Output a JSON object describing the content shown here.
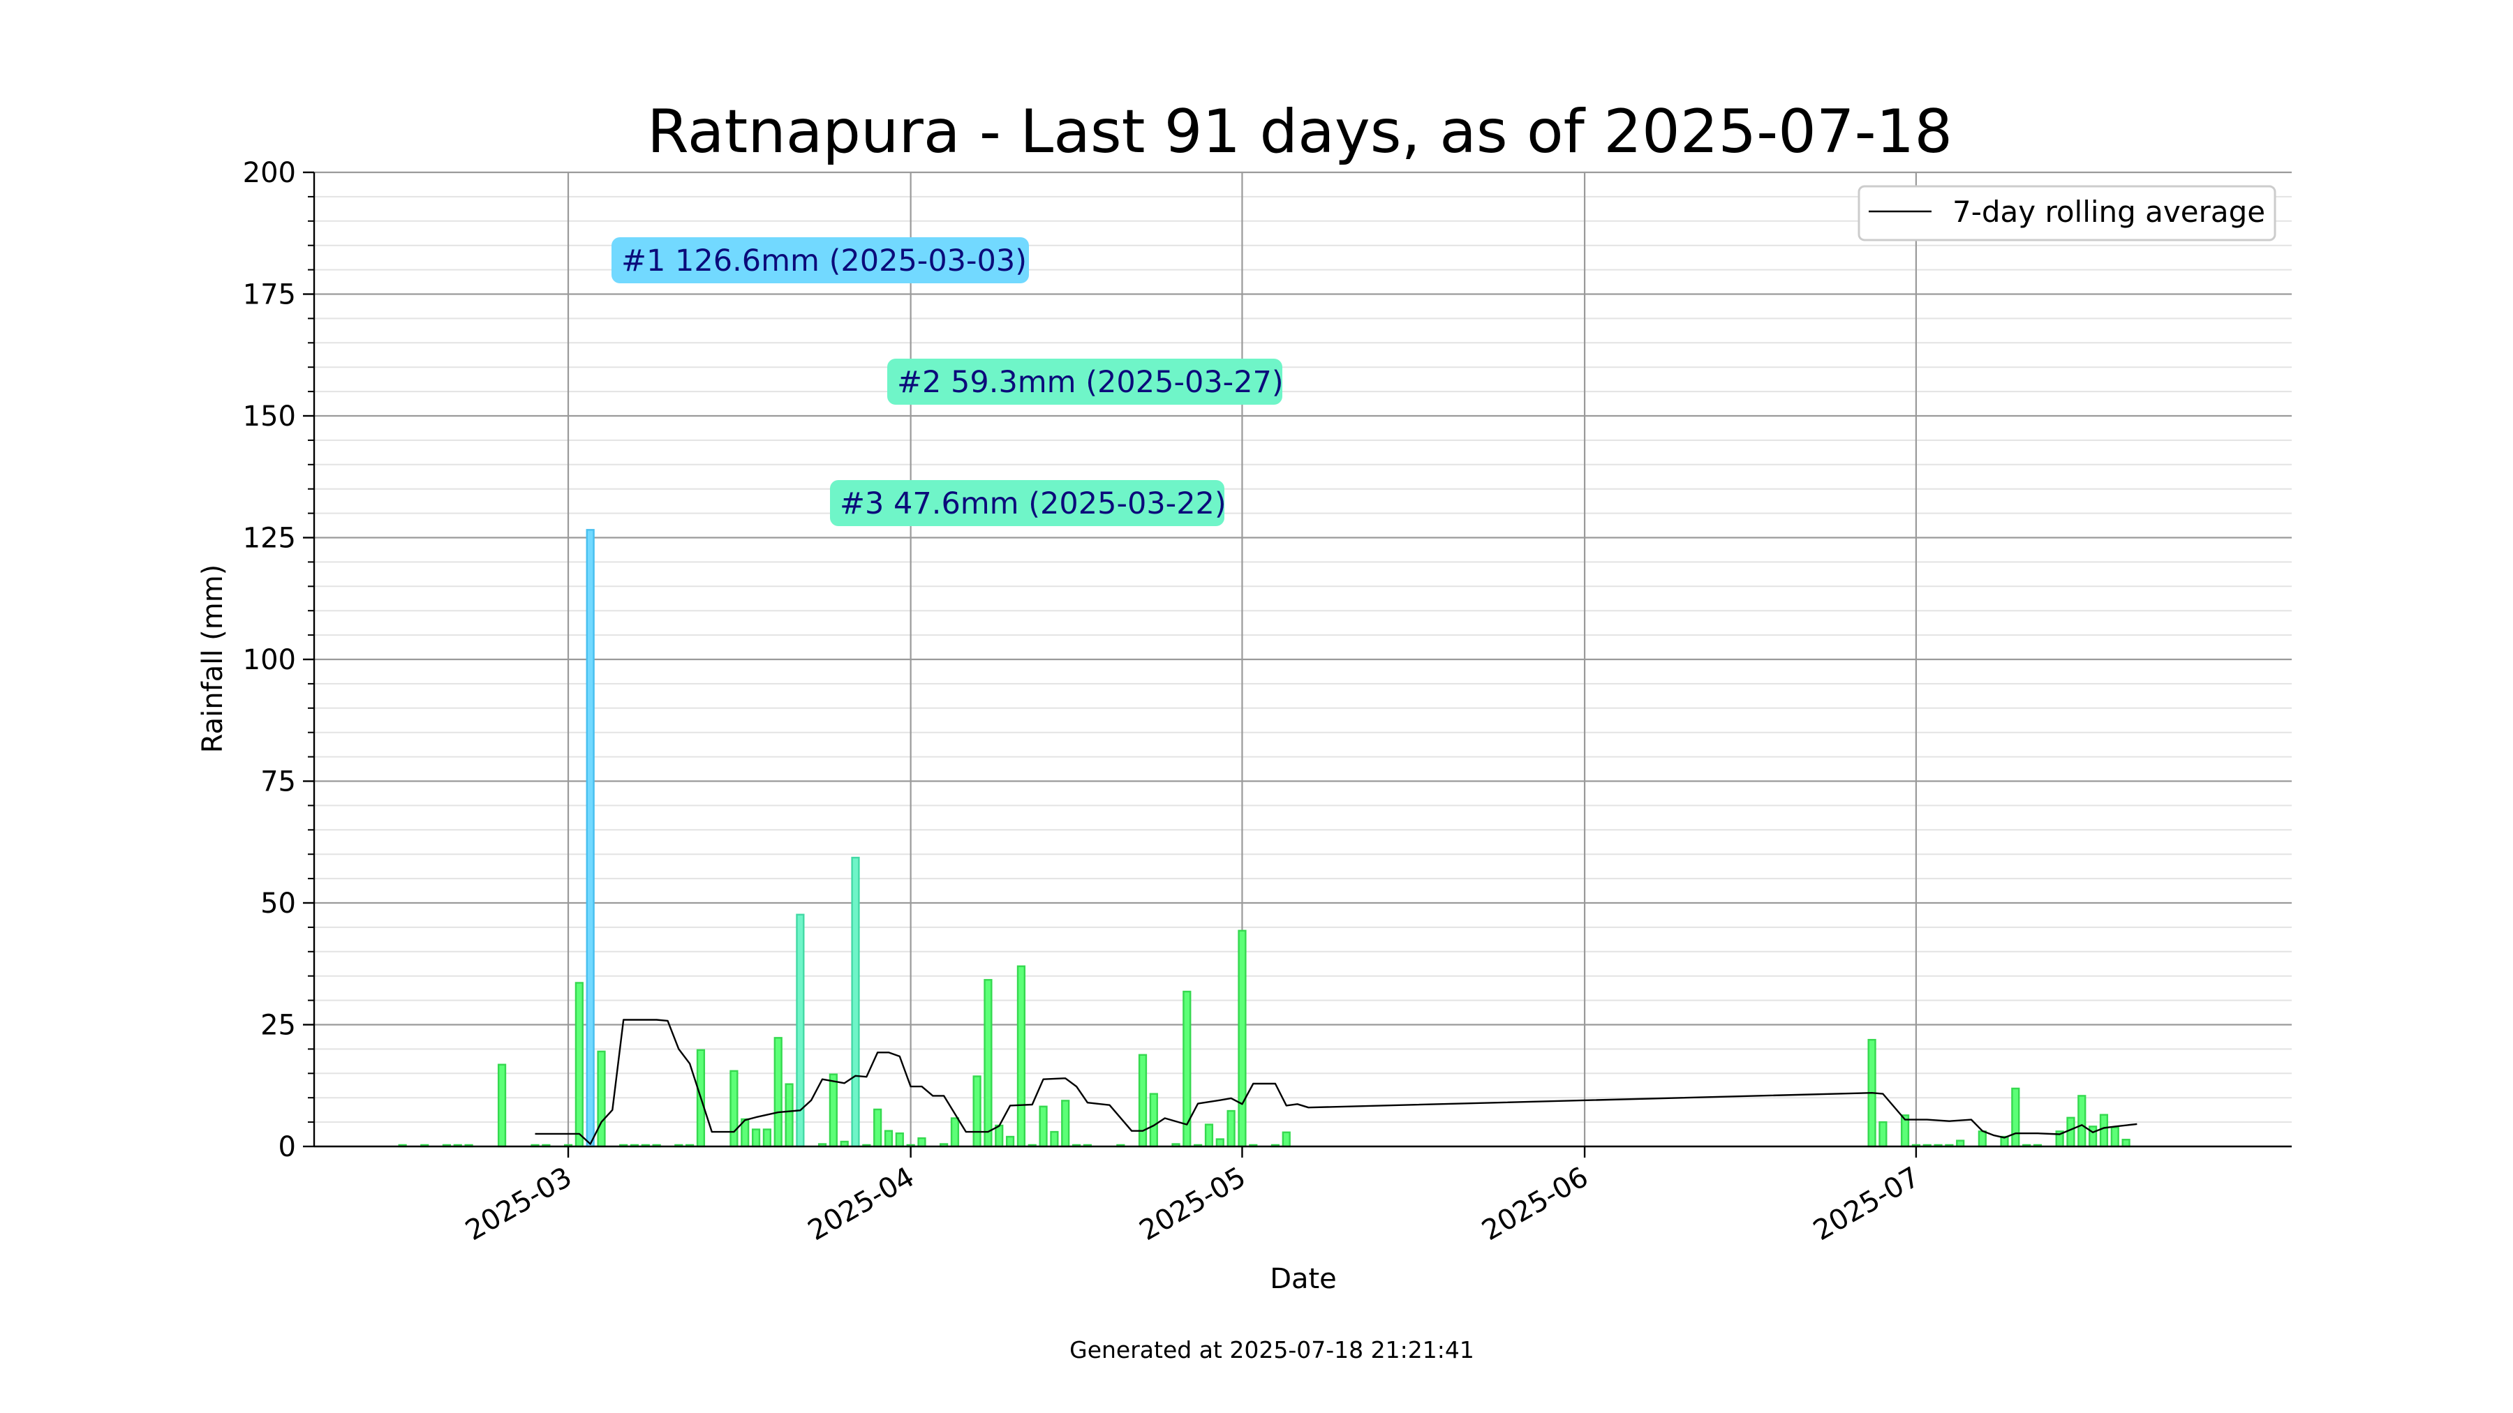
{
  "colors": {
    "bar_default": "#5cff77",
    "bar_default_edge": "#35d94f",
    "bar_top1": "#72d9ff",
    "bar_top1_edge": "#47bfef",
    "bar_top_other": "#6ff5c8",
    "bar_top_other_edge": "#42d9a5",
    "rolling_line": "#000000",
    "grid_major": "#9a9a9a",
    "grid_minor": "#e3e3e3"
  },
  "chart_data": {
    "type": "bar",
    "title": "Ratnapura - Last 91 days, as of 2025-07-18",
    "xlabel": "Date",
    "ylabel": "Rainfall (mm)",
    "ylim": [
      0,
      200
    ],
    "yticks": [
      0,
      25,
      50,
      75,
      100,
      125,
      150,
      175,
      200
    ],
    "xlim": [
      "2025-02-06",
      "2025-08-04"
    ],
    "xticks": [
      "2025-03",
      "2025-04",
      "2025-05",
      "2025-06",
      "2025-07"
    ],
    "grid": true,
    "legend": {
      "placement": "top-right",
      "entries": [
        "7-day rolling average"
      ]
    },
    "series": [
      {
        "kind": "bar",
        "points": [
          [
            "2025-02-14",
            0.3
          ],
          [
            "2025-02-16",
            0.3
          ],
          [
            "2025-02-18",
            0.3
          ],
          [
            "2025-02-19",
            0.3
          ],
          [
            "2025-02-20",
            0.3
          ],
          [
            "2025-02-23",
            16.8
          ],
          [
            "2025-02-26",
            0.3
          ],
          [
            "2025-02-27",
            0.3
          ],
          [
            "2025-03-01",
            0.3
          ],
          [
            "2025-03-02",
            33.6
          ],
          [
            "2025-03-03",
            126.6
          ],
          [
            "2025-03-04",
            19.5
          ],
          [
            "2025-03-06",
            0.3
          ],
          [
            "2025-03-07",
            0.3
          ],
          [
            "2025-03-08",
            0.3
          ],
          [
            "2025-03-09",
            0.3
          ],
          [
            "2025-03-11",
            0.3
          ],
          [
            "2025-03-12",
            0.3
          ],
          [
            "2025-03-13",
            19.8
          ],
          [
            "2025-03-16",
            15.5
          ],
          [
            "2025-03-17",
            5.6
          ],
          [
            "2025-03-18",
            3.5
          ],
          [
            "2025-03-19",
            3.5
          ],
          [
            "2025-03-20",
            22.3
          ],
          [
            "2025-03-21",
            12.8
          ],
          [
            "2025-03-22",
            47.6
          ],
          [
            "2025-03-24",
            0.5
          ],
          [
            "2025-03-25",
            14.8
          ],
          [
            "2025-03-26",
            1.0
          ],
          [
            "2025-03-27",
            59.3
          ],
          [
            "2025-03-28",
            0.3
          ],
          [
            "2025-03-29",
            7.6
          ],
          [
            "2025-03-30",
            3.2
          ],
          [
            "2025-03-31",
            2.7
          ],
          [
            "2025-04-01",
            0.3
          ],
          [
            "2025-04-02",
            1.7
          ],
          [
            "2025-04-04",
            0.5
          ],
          [
            "2025-04-05",
            5.8
          ],
          [
            "2025-04-07",
            14.4
          ],
          [
            "2025-04-08",
            34.2
          ],
          [
            "2025-04-09",
            4.3
          ],
          [
            "2025-04-10",
            2.0
          ],
          [
            "2025-04-11",
            37.0
          ],
          [
            "2025-04-12",
            0.3
          ],
          [
            "2025-04-13",
            8.2
          ],
          [
            "2025-04-14",
            3.0
          ],
          [
            "2025-04-15",
            9.4
          ],
          [
            "2025-04-16",
            0.3
          ],
          [
            "2025-04-17",
            0.3
          ],
          [
            "2025-04-20",
            0.3
          ],
          [
            "2025-04-22",
            18.8
          ],
          [
            "2025-04-23",
            10.8
          ],
          [
            "2025-04-25",
            0.5
          ],
          [
            "2025-04-26",
            31.8
          ],
          [
            "2025-04-27",
            0.3
          ],
          [
            "2025-04-28",
            4.5
          ],
          [
            "2025-04-29",
            1.5
          ],
          [
            "2025-04-30",
            7.3
          ],
          [
            "2025-05-01",
            44.3
          ],
          [
            "2025-05-02",
            0.3
          ],
          [
            "2025-05-04",
            0.3
          ],
          [
            "2025-05-05",
            2.9
          ],
          [
            "2025-06-27",
            21.9
          ],
          [
            "2025-06-28",
            5.0
          ],
          [
            "2025-06-30",
            6.4
          ],
          [
            "2025-07-01",
            0.3
          ],
          [
            "2025-07-02",
            0.3
          ],
          [
            "2025-07-03",
            0.3
          ],
          [
            "2025-07-04",
            0.3
          ],
          [
            "2025-07-05",
            1.2
          ],
          [
            "2025-07-07",
            3.1
          ],
          [
            "2025-07-09",
            2.0
          ],
          [
            "2025-07-10",
            11.9
          ],
          [
            "2025-07-11",
            0.3
          ],
          [
            "2025-07-12",
            0.3
          ],
          [
            "2025-07-14",
            3.1
          ],
          [
            "2025-07-15",
            5.9
          ],
          [
            "2025-07-16",
            10.4
          ],
          [
            "2025-07-17",
            4.1
          ],
          [
            "2025-07-18",
            6.5
          ],
          [
            "2025-07-19",
            3.9
          ],
          [
            "2025-07-20",
            1.4
          ]
        ]
      },
      {
        "kind": "line",
        "name": "7-day rolling average",
        "points": [
          [
            "2025-02-26",
            2.6
          ],
          [
            "2025-03-01",
            2.6
          ],
          [
            "2025-03-02",
            2.6
          ],
          [
            "2025-03-03",
            0.5
          ],
          [
            "2025-03-04",
            5.0
          ],
          [
            "2025-03-05",
            7.5
          ],
          [
            "2025-03-06",
            26.0
          ],
          [
            "2025-03-09",
            26.0
          ],
          [
            "2025-03-10",
            25.8
          ],
          [
            "2025-03-11",
            20.0
          ],
          [
            "2025-03-12",
            17.0
          ],
          [
            "2025-03-14",
            3.0
          ],
          [
            "2025-03-16",
            3.0
          ],
          [
            "2025-03-17",
            5.4
          ],
          [
            "2025-03-18",
            6.0
          ],
          [
            "2025-03-20",
            7.0
          ],
          [
            "2025-03-22",
            7.4
          ],
          [
            "2025-03-23",
            9.5
          ],
          [
            "2025-03-24",
            13.8
          ],
          [
            "2025-03-26",
            13.0
          ],
          [
            "2025-03-27",
            14.5
          ],
          [
            "2025-03-28",
            14.3
          ],
          [
            "2025-03-29",
            19.3
          ],
          [
            "2025-03-30",
            19.3
          ],
          [
            "2025-03-31",
            18.5
          ],
          [
            "2025-04-01",
            12.3
          ],
          [
            "2025-04-02",
            12.3
          ],
          [
            "2025-04-03",
            10.4
          ],
          [
            "2025-04-04",
            10.4
          ],
          [
            "2025-04-06",
            3.0
          ],
          [
            "2025-04-08",
            3.0
          ],
          [
            "2025-04-09",
            4.2
          ],
          [
            "2025-04-10",
            8.4
          ],
          [
            "2025-04-12",
            8.6
          ],
          [
            "2025-04-13",
            13.8
          ],
          [
            "2025-04-15",
            14.0
          ],
          [
            "2025-04-16",
            12.3
          ],
          [
            "2025-04-17",
            9.0
          ],
          [
            "2025-04-19",
            8.5
          ],
          [
            "2025-04-21",
            3.2
          ],
          [
            "2025-04-22",
            3.2
          ],
          [
            "2025-04-23",
            4.3
          ],
          [
            "2025-04-24",
            5.8
          ],
          [
            "2025-04-26",
            4.5
          ],
          [
            "2025-04-27",
            8.8
          ],
          [
            "2025-04-29",
            9.5
          ],
          [
            "2025-04-30",
            9.9
          ],
          [
            "2025-05-01",
            8.7
          ],
          [
            "2025-05-02",
            12.9
          ],
          [
            "2025-05-04",
            12.9
          ],
          [
            "2025-05-05",
            8.4
          ],
          [
            "2025-05-06",
            8.7
          ],
          [
            "2025-05-07",
            8.0
          ],
          [
            "2025-06-27",
            11.0
          ],
          [
            "2025-06-28",
            10.8
          ],
          [
            "2025-06-30",
            5.5
          ],
          [
            "2025-07-02",
            5.5
          ],
          [
            "2025-07-04",
            5.2
          ],
          [
            "2025-07-06",
            5.5
          ],
          [
            "2025-07-07",
            3.2
          ],
          [
            "2025-07-08",
            2.3
          ],
          [
            "2025-07-09",
            1.8
          ],
          [
            "2025-07-10",
            2.7
          ],
          [
            "2025-07-12",
            2.7
          ],
          [
            "2025-07-14",
            2.5
          ],
          [
            "2025-07-16",
            4.4
          ],
          [
            "2025-07-17",
            2.9
          ],
          [
            "2025-07-18",
            3.8
          ],
          [
            "2025-07-19",
            4.1
          ],
          [
            "2025-07-21",
            4.6
          ]
        ]
      }
    ],
    "annotations": [
      {
        "rank": 1,
        "date": "2025-03-03",
        "value": 126.6,
        "text": "#1 126.6mm (2025-03-03)"
      },
      {
        "rank": 2,
        "date": "2025-03-27",
        "value": 59.3,
        "text": "#2 59.3mm (2025-03-27)"
      },
      {
        "rank": 3,
        "date": "2025-03-22",
        "value": 47.6,
        "text": "#3 47.6mm (2025-03-22)"
      }
    ]
  },
  "footer": "Generated at 2025-07-18 21:21:41"
}
